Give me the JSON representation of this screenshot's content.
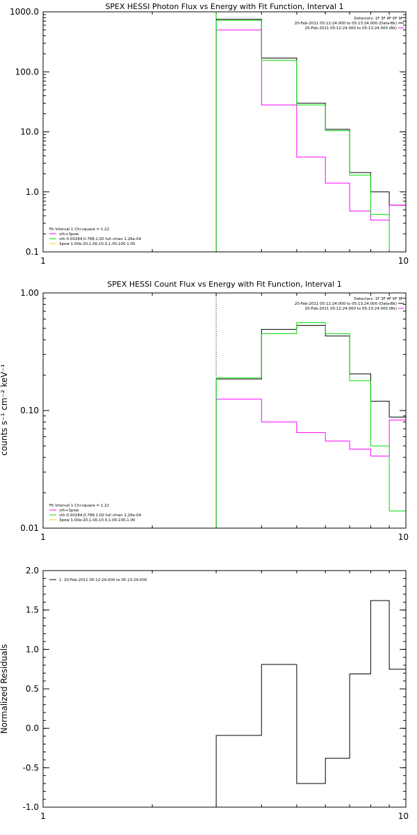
{
  "chart_data": [
    {
      "id": "photon",
      "type": "line",
      "step": true,
      "title": "SPEX HESSI Photon Flux vs Energy with Fit Function, Interval 1",
      "ylabel": "",
      "xscale": "log",
      "yscale": "log",
      "xlim": [
        1,
        10
      ],
      "ylim": [
        0.1,
        1000
      ],
      "xticks": [
        1,
        10
      ],
      "xtick_labels": [
        "1",
        "10"
      ],
      "yticks": [
        0.1,
        1,
        10,
        100,
        1000
      ],
      "ytick_labels": [
        "0.1",
        "1.0",
        "10.0",
        "100.0",
        "1000.0"
      ],
      "vline": {
        "x": 3,
        "color": "#00cc00"
      },
      "bin_edges": [
        3,
        4,
        5,
        6,
        7,
        8,
        9,
        10
      ],
      "series": [
        {
          "name": "20-Feb-2011 05:12:24.000 to 05:13:24.000 (Data-Bk)",
          "color": "#000000",
          "values": [
            750,
            170,
            30,
            11,
            2.1,
            1.0,
            0.6
          ]
        },
        {
          "name": "vth+3pow",
          "color": "#ff00ff",
          "values": [
            500,
            28,
            3.8,
            1.4,
            0.48,
            0.34,
            0.6
          ]
        },
        {
          "name": "vth",
          "color": "#00dd00",
          "values": [
            720,
            155,
            28,
            10.5,
            1.9,
            0.42,
            0.1
          ]
        }
      ],
      "legend_top": {
        "header": "Detectors: 1F 3F 4F 6F 9F",
        "entries": [
          {
            "text": "20-Feb-2011 05:12:24.000 to 05:13:24.000 (Data-Bk)",
            "color": "#000000"
          },
          {
            "text": "20-Feb-2011 05:12:24.000 to 05:13:24.000 (Bk)",
            "color": "#ff00ff"
          }
        ]
      },
      "legend_bottom": {
        "header": "Fit Interval 1    Chi-square = 1.22",
        "entries": [
          {
            "text": "vth+3pow",
            "color": "#ff00ff"
          },
          {
            "text": "vth 0.00284,0.788,1.00  full chian 1.26e-04",
            "color": "#00dd00"
          },
          {
            "text": "3pow 1.00e-20,1.00,10.0,1.00,100,1.00",
            "color": "#ffcc00"
          }
        ]
      }
    },
    {
      "id": "count",
      "type": "line",
      "step": true,
      "title": "SPEX HESSI Count Flux vs Energy with Fit Function, Interval 1",
      "ylabel": "counts s⁻¹ cm⁻² keV⁻¹",
      "xscale": "log",
      "yscale": "log",
      "xlim": [
        1,
        10
      ],
      "ylim": [
        0.01,
        1
      ],
      "xticks": [
        1,
        10
      ],
      "xtick_labels": [
        "1",
        "10"
      ],
      "yticks": [
        0.01,
        0.1,
        1
      ],
      "ytick_labels": [
        "0.01",
        "0.10",
        "1.00"
      ],
      "vline": {
        "x": 3,
        "color": "#000000",
        "dotted": true
      },
      "bin_edges": [
        3,
        4,
        5,
        6,
        7,
        8,
        9,
        10
      ],
      "series": [
        {
          "name": "20-Feb-2011 05:12:24.000 to 05:13:24.000 (Data-Bk)",
          "color": "#000000",
          "values": [
            0.185,
            0.49,
            0.53,
            0.43,
            0.205,
            0.12,
            0.088
          ]
        },
        {
          "name": "20-Feb-2011 05:12:24.000 to 05:13:24.000 (Bk)",
          "color": "#ff00ff",
          "values": [
            0.125,
            0.08,
            0.065,
            0.055,
            0.047,
            0.041,
            0.083
          ]
        },
        {
          "name": "vth+3pow",
          "color": "#00dd00",
          "values": [
            0.19,
            0.45,
            0.56,
            0.45,
            0.18,
            0.05,
            0.014
          ]
        }
      ],
      "legend_top": {
        "header": "Detectors: 1F 3F 4F 6F 9F",
        "entries": [
          {
            "text": "20-Feb-2011 05:12:24.000 to 05:13:24.000 (Data-Bk)",
            "color": "#000000"
          },
          {
            "text": "20-Feb-2011 05:12:24.000 to 05:13:24.000 (Bk)",
            "color": "#ff00ff"
          }
        ]
      },
      "legend_bottom": {
        "header": "Fit Interval 1    Chi-square = 1.22",
        "entries": [
          {
            "text": "vth+3pow",
            "color": "#ff00ff"
          },
          {
            "text": "vth 0.00284,0.788,1.00  full chian 1.26e-04",
            "color": "#00dd00"
          },
          {
            "text": "3pow 1.00e-20,1.00,10.0,1.00,100,1.00",
            "color": "#ffcc00"
          }
        ]
      }
    },
    {
      "id": "residuals",
      "type": "line",
      "step": true,
      "title": "",
      "ylabel": "Normalized Residuals",
      "xscale": "log",
      "yscale": "linear",
      "xlim": [
        1,
        10
      ],
      "ylim": [
        -1,
        2
      ],
      "xticks": [
        1,
        10
      ],
      "xtick_labels": [
        "1",
        "10"
      ],
      "yticks": [
        -1,
        -0.5,
        0,
        0.5,
        1,
        1.5,
        2
      ],
      "ytick_labels": [
        "-1.0",
        "-0.5",
        "0.0",
        "0.5",
        "1.0",
        "1.5",
        "2.0"
      ],
      "bin_edges": [
        3,
        4,
        5,
        6,
        7,
        8,
        9,
        10
      ],
      "series": [
        {
          "name": "1. 20-Feb-2011 05:12:24.000 to 05:13:24.000",
          "color": "#000000",
          "values": [
            -0.09,
            0.81,
            -0.7,
            -0.38,
            0.69,
            1.62,
            0.75
          ]
        }
      ],
      "legend_top": null,
      "legend_bottom": null,
      "legend_left": {
        "entries": [
          {
            "text": "1. 20-Feb-2011 05:12:24.000 to 05:13:24.000",
            "color": "#000000"
          }
        ]
      }
    }
  ]
}
